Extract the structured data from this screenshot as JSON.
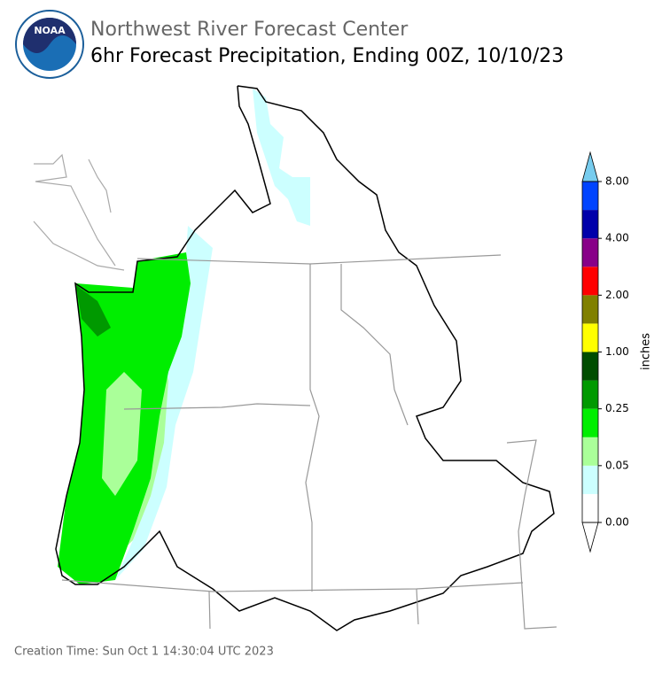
{
  "header": {
    "logo_text": "NOAA",
    "title": "Northwest River Forecast Center",
    "subtitle": "6hr Forecast Precipitation, Ending 00Z, 10/10/23"
  },
  "colorbar": {
    "label": "inches",
    "colors": [
      "#ffffff",
      "#ccffff",
      "#aaff99",
      "#00ee00",
      "#009900",
      "#004d00",
      "#ffff00",
      "#808000",
      "#ff0000",
      "#880088",
      "#0000aa",
      "#0044ff"
    ],
    "under_color": "#ffffff",
    "over_color": "#77ccee",
    "ticks": [
      {
        "value": 0,
        "label": "0.00"
      },
      {
        "value": 0.05,
        "label": "0.05"
      },
      {
        "value": 0.25,
        "label": "0.25"
      },
      {
        "value": 1,
        "label": "1.00"
      },
      {
        "value": 2,
        "label": "2.00"
      },
      {
        "value": 4,
        "label": "4.00"
      },
      {
        "value": 8,
        "label": "8.00"
      }
    ]
  },
  "footer": {
    "creation_time": "Creation Time: Sun Oct 1 14:30:04 UTC 2023"
  }
}
